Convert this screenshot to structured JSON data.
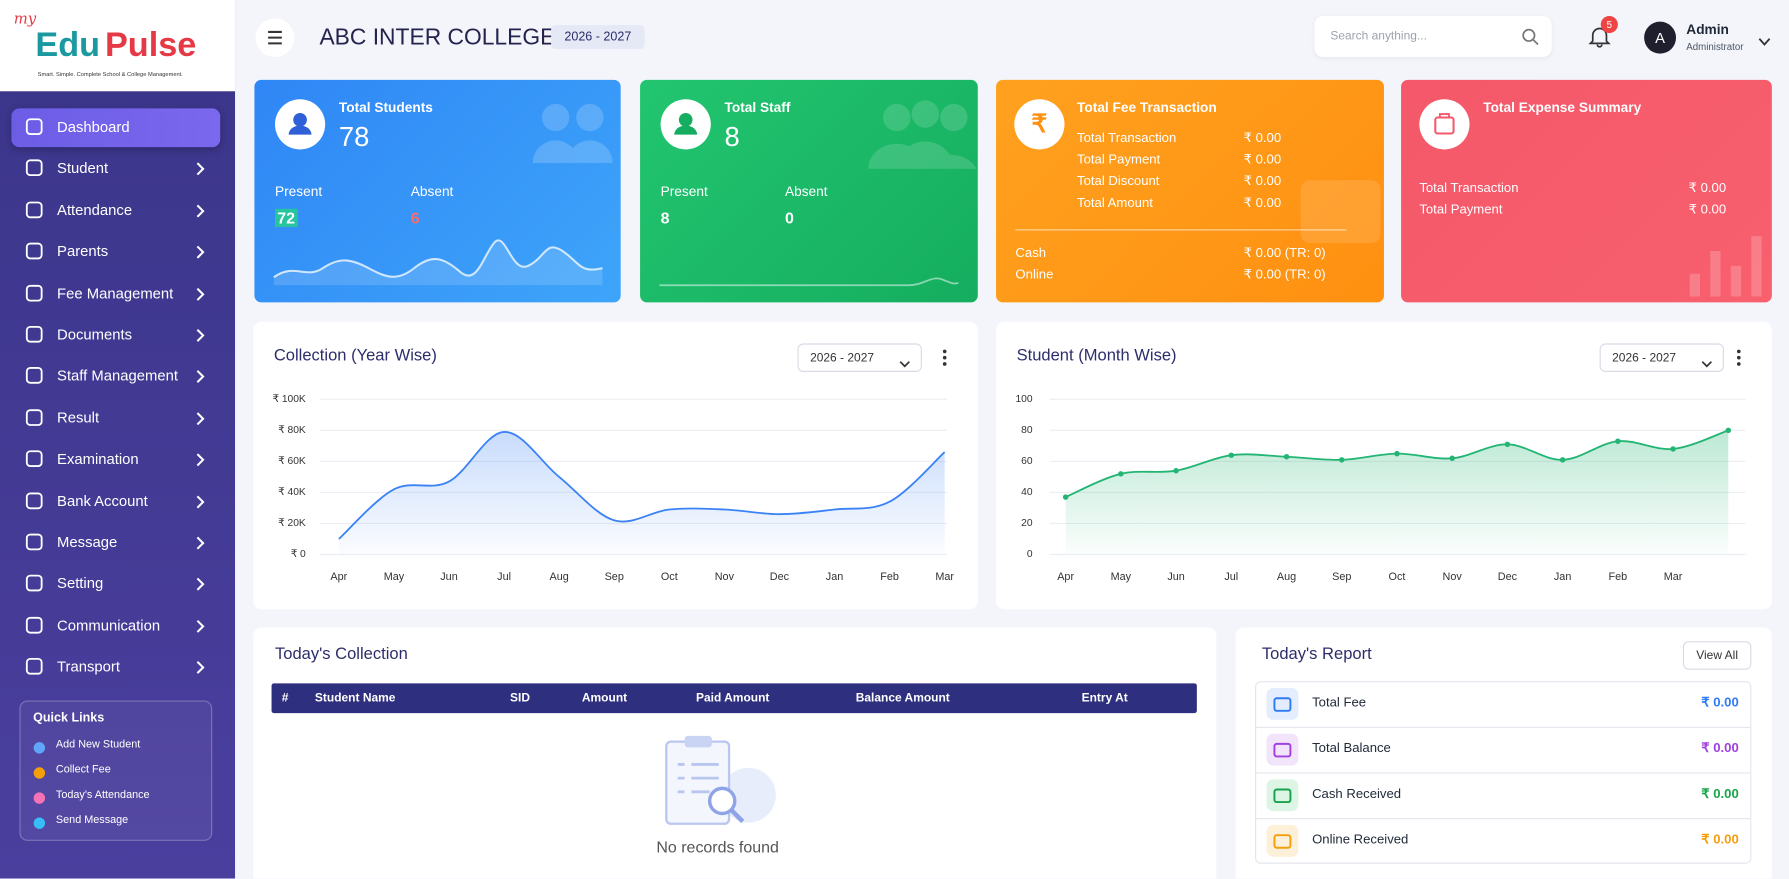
{
  "logo": {
    "prefix": "my",
    "part1": "Edu",
    "part2": "Pulse",
    "tagline": "Smart. Simple. Complete School & College Management."
  },
  "sidebar": {
    "menu": [
      "Dashboard",
      "Student",
      "Attendance",
      "Parents",
      "Fee Management",
      "Documents",
      "Staff Management",
      "Result",
      "Examination",
      "Bank Account",
      "Message",
      "Setting",
      "Communication",
      "Transport"
    ],
    "quick_links": {
      "title": "Quick Links",
      "items": [
        "Add New Student",
        "Collect Fee",
        "Today's Attendance",
        "Send Message"
      ]
    }
  },
  "topbar": {
    "school": "ABC INTER COLLEGE",
    "session": "2026 - 2027",
    "search_placeholder": "Search anything...",
    "notifications": 5,
    "avatar": "A",
    "user": "Admin",
    "role": "Administrator"
  },
  "cards": [
    {
      "title": "Total Students",
      "value": 78,
      "present_label": "Present",
      "present": 72,
      "absent_label": "Absent",
      "absent": 6
    },
    {
      "title": "Total Staff",
      "value": 8,
      "present_label": "Present",
      "present": 8,
      "absent_label": "Absent",
      "absent": 0
    }
  ],
  "fee_card": {
    "title": "Total Fee Transaction",
    "rows": [
      [
        "Total Transaction",
        "₹ 0.00"
      ],
      [
        "Total Payment",
        "₹ 0.00"
      ],
      [
        "Total Discount",
        "₹ 0.00"
      ],
      [
        "Total Amount",
        "₹ 0.00"
      ]
    ],
    "modes": [
      [
        "Cash",
        "₹ 0.00 (TR: 0)"
      ],
      [
        "Online",
        "₹ 0.00 (TR: 0)"
      ]
    ]
  },
  "expense_card": {
    "title": "Total Expense Summary",
    "rows": [
      [
        "Total Transaction",
        "₹ 0.00"
      ],
      [
        "Total Payment",
        "₹ 0.00"
      ]
    ]
  },
  "chart_data": [
    {
      "type": "line",
      "title": "Collection (Year Wise)",
      "filter": "2026 - 2027",
      "color": "#3b82f6",
      "area": true,
      "markers": false,
      "grid": true,
      "categories": [
        "Apr",
        "May",
        "Jun",
        "Jul",
        "Aug",
        "Sep",
        "Oct",
        "Nov",
        "Dec",
        "Jan",
        "Feb",
        "Mar"
      ],
      "values": [
        10000,
        42000,
        47000,
        79000,
        50000,
        22000,
        29000,
        29000,
        26000,
        29000,
        34000,
        66000
      ],
      "ylim": [
        0,
        100000
      ],
      "yticks": [
        {
          "value": 0,
          "label": "₹ 0"
        },
        {
          "value": 20000,
          "label": "₹ 20K"
        },
        {
          "value": 40000,
          "label": "₹ 40K"
        },
        {
          "value": 60000,
          "label": "₹ 60K"
        },
        {
          "value": 80000,
          "label": "₹ 80K"
        },
        {
          "value": 100000,
          "label": "₹ 100K"
        }
      ]
    },
    {
      "type": "line",
      "title": "Student (Month Wise)",
      "filter": "2026 - 2027",
      "color": "#22b573",
      "area": true,
      "markers": true,
      "grid": true,
      "categories": [
        "Apr",
        "May",
        "Jun",
        "Jul",
        "Aug",
        "Sep",
        "Oct",
        "Nov",
        "Dec",
        "Jan",
        "Feb",
        "Mar",
        null
      ],
      "values": [
        37,
        52,
        54,
        64,
        63,
        61,
        65,
        62,
        71,
        61,
        73,
        68,
        80
      ],
      "ylim": [
        0,
        100
      ],
      "yticks": [
        0,
        20,
        40,
        60,
        80,
        100
      ]
    }
  ],
  "todays_collection": {
    "title": "Today's Collection",
    "columns": [
      "#",
      "Student Name",
      "SID",
      "Amount",
      "Paid Amount",
      "Balance Amount",
      "Entry At"
    ],
    "empty": "No records found"
  },
  "todays_report": {
    "title": "Today's Report",
    "button": "View All",
    "rows": [
      {
        "label": "Total Fee",
        "value": "₹ 0.00"
      },
      {
        "label": "Total Balance",
        "value": "₹ 0.00"
      },
      {
        "label": "Cash Received",
        "value": "₹ 0.00"
      },
      {
        "label": "Online Received",
        "value": "₹ 0.00"
      }
    ]
  }
}
